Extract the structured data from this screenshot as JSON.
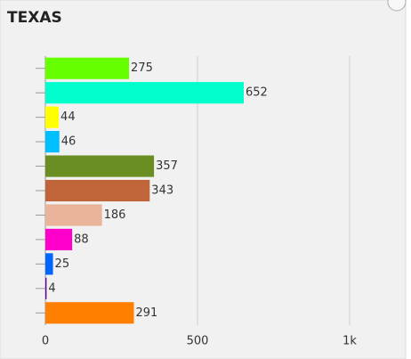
{
  "chart_data": {
    "type": "bar",
    "orientation": "horizontal",
    "title": "TEXAS",
    "categories": [
      null,
      null,
      null,
      null,
      null,
      null,
      null,
      null,
      null,
      null,
      null
    ],
    "values": [
      275,
      652,
      44,
      46,
      357,
      343,
      186,
      88,
      25,
      4,
      291
    ],
    "colors": [
      "#66ff00",
      "#00ffcc",
      "#ffff00",
      "#00bfff",
      "#6b8e23",
      "#c0653a",
      "#e9b49a",
      "#ff00cc",
      "#0066ff",
      "#660099",
      "#ff7f00"
    ],
    "xlim": [
      0,
      1000
    ],
    "xticks": [
      0,
      500,
      {
        "value": 1000,
        "label": "1k"
      }
    ],
    "grid": true
  }
}
